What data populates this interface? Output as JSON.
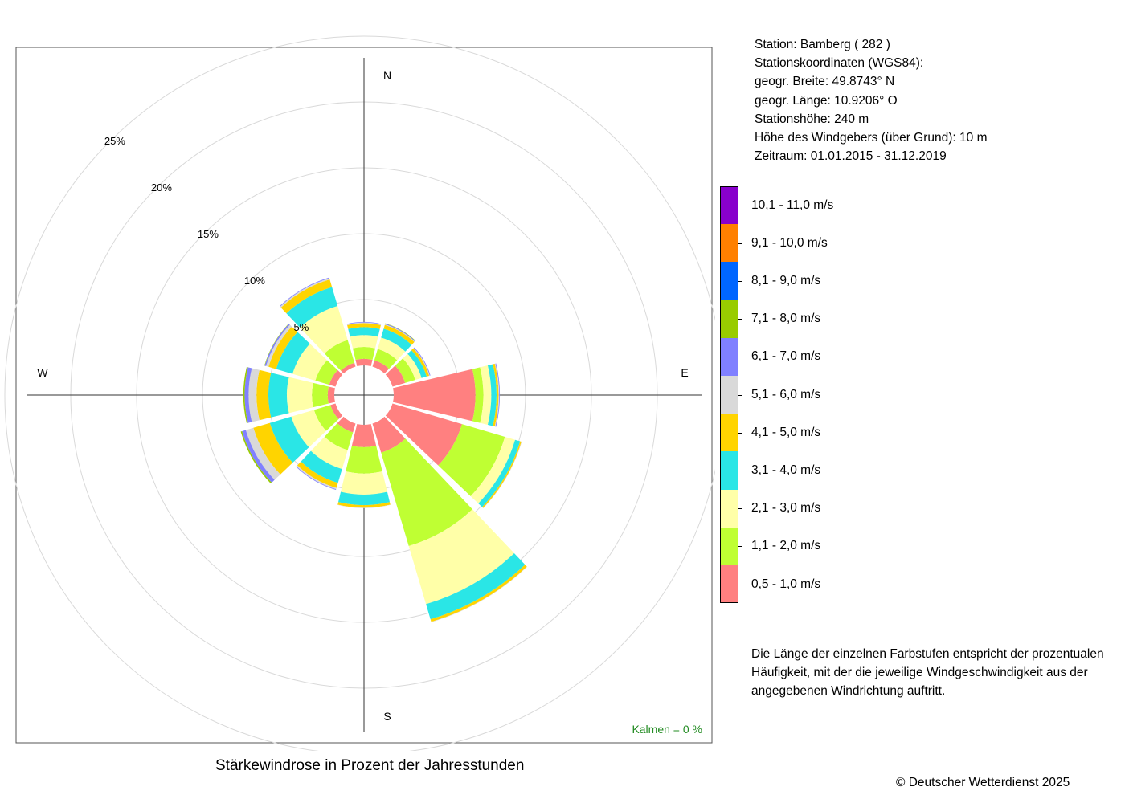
{
  "title": "Stärkewindrose in Prozent der Jahresstunden",
  "copyright": "© Deutscher Wetterdienst  2025",
  "station_info": [
    "Station:  Bamberg  ( 282 )",
    "Stationskoordinaten (WGS84):",
    "geogr. Breite: 49.8743° N",
    "geogr. Länge: 10.9206° O",
    "Stationshöhe: 240 m",
    "Höhe des Windgebers (über Grund): 10 m",
    "Zeitraum: 01.01.2015 - 31.12.2019"
  ],
  "note": "Die Länge der einzelnen Farbstufen entspricht der prozentualen Häufigkeit, mit der die jeweilige Windgeschwindigkeit aus der angegebenen Windrichtung auftritt.",
  "calm_label": "Kalmen  =  0 %",
  "chart_data": {
    "type": "wind-rose",
    "title": "Stärkewindrose in Prozent der Jahresstunden",
    "compass_labels": [
      "N",
      "E",
      "S",
      "W"
    ],
    "ring_labels": [
      "5%",
      "10%",
      "15%",
      "20%",
      "25%"
    ],
    "ring_values": [
      5,
      10,
      15,
      20,
      25
    ],
    "calm_percent": 0,
    "speed_classes": [
      {
        "label": "0,5 - 1,0 m/s",
        "color": "#ff8080"
      },
      {
        "label": "1,1 - 2,0 m/s",
        "color": "#bfff33"
      },
      {
        "label": "2,1 - 3,0 m/s",
        "color": "#ffffa8"
      },
      {
        "label": "3,1 - 4,0 m/s",
        "color": "#2ae6e6"
      },
      {
        "label": "4,1 - 5,0 m/s",
        "color": "#ffd400"
      },
      {
        "label": "5,1 - 6,0 m/s",
        "color": "#d9d9d9"
      },
      {
        "label": "6,1 - 7,0 m/s",
        "color": "#8080ff"
      },
      {
        "label": "7,1 - 8,0 m/s",
        "color": "#99cc00"
      },
      {
        "label": "8,1 - 9,0 m/s",
        "color": "#0066ff"
      },
      {
        "label": "9,1 - 10,0 m/s",
        "color": "#ff8000"
      },
      {
        "label": "10,1 - 11,0 m/s",
        "color": "#8800cc"
      }
    ],
    "sectors": [
      {
        "direction": 0,
        "values": [
          0.5,
          0.9,
          0.9,
          0.6,
          0.3,
          0.05,
          0.05,
          0,
          0,
          0,
          0
        ]
      },
      {
        "direction": 30,
        "values": [
          0.5,
          0.9,
          0.9,
          0.7,
          0.3,
          0.05,
          0.05,
          0.03,
          0,
          0,
          0
        ]
      },
      {
        "direction": 60,
        "values": [
          1.0,
          0.8,
          0.5,
          0.4,
          0.2,
          0.05,
          0.05,
          0,
          0,
          0,
          0
        ]
      },
      {
        "direction": 90,
        "values": [
          6.2,
          0.6,
          0.6,
          0.4,
          0.15,
          0.05,
          0.05,
          0,
          0,
          0,
          0
        ]
      },
      {
        "direction": 120,
        "values": [
          5.5,
          3.4,
          0.8,
          0.4,
          0.1,
          0.03,
          0,
          0,
          0,
          0,
          0
        ]
      },
      {
        "direction": 150,
        "values": [
          2.3,
          7.4,
          4.6,
          1.2,
          0.2,
          0.03,
          0,
          0,
          0,
          0,
          0
        ]
      },
      {
        "direction": 180,
        "values": [
          1.7,
          2.0,
          1.6,
          0.8,
          0.2,
          0.03,
          0,
          0,
          0,
          0,
          0
        ]
      },
      {
        "direction": 210,
        "values": [
          0.7,
          1.4,
          1.5,
          1.1,
          0.4,
          0.1,
          0.05,
          0,
          0,
          0,
          0
        ]
      },
      {
        "direction": 240,
        "values": [
          0.4,
          1.3,
          1.8,
          1.7,
          1.3,
          0.6,
          0.3,
          0.1,
          0,
          0,
          0
        ]
      },
      {
        "direction": 270,
        "values": [
          0.5,
          1.2,
          1.9,
          1.4,
          0.9,
          0.6,
          0.3,
          0.1,
          0,
          0,
          0
        ]
      },
      {
        "direction": 300,
        "values": [
          0.5,
          1.1,
          1.8,
          1.3,
          0.6,
          0.2,
          0.1,
          0.03,
          0,
          0,
          0
        ]
      },
      {
        "direction": 330,
        "values": [
          0.3,
          1.8,
          2.7,
          1.5,
          0.6,
          0.1,
          0.05,
          0,
          0,
          0,
          0
        ]
      }
    ]
  }
}
